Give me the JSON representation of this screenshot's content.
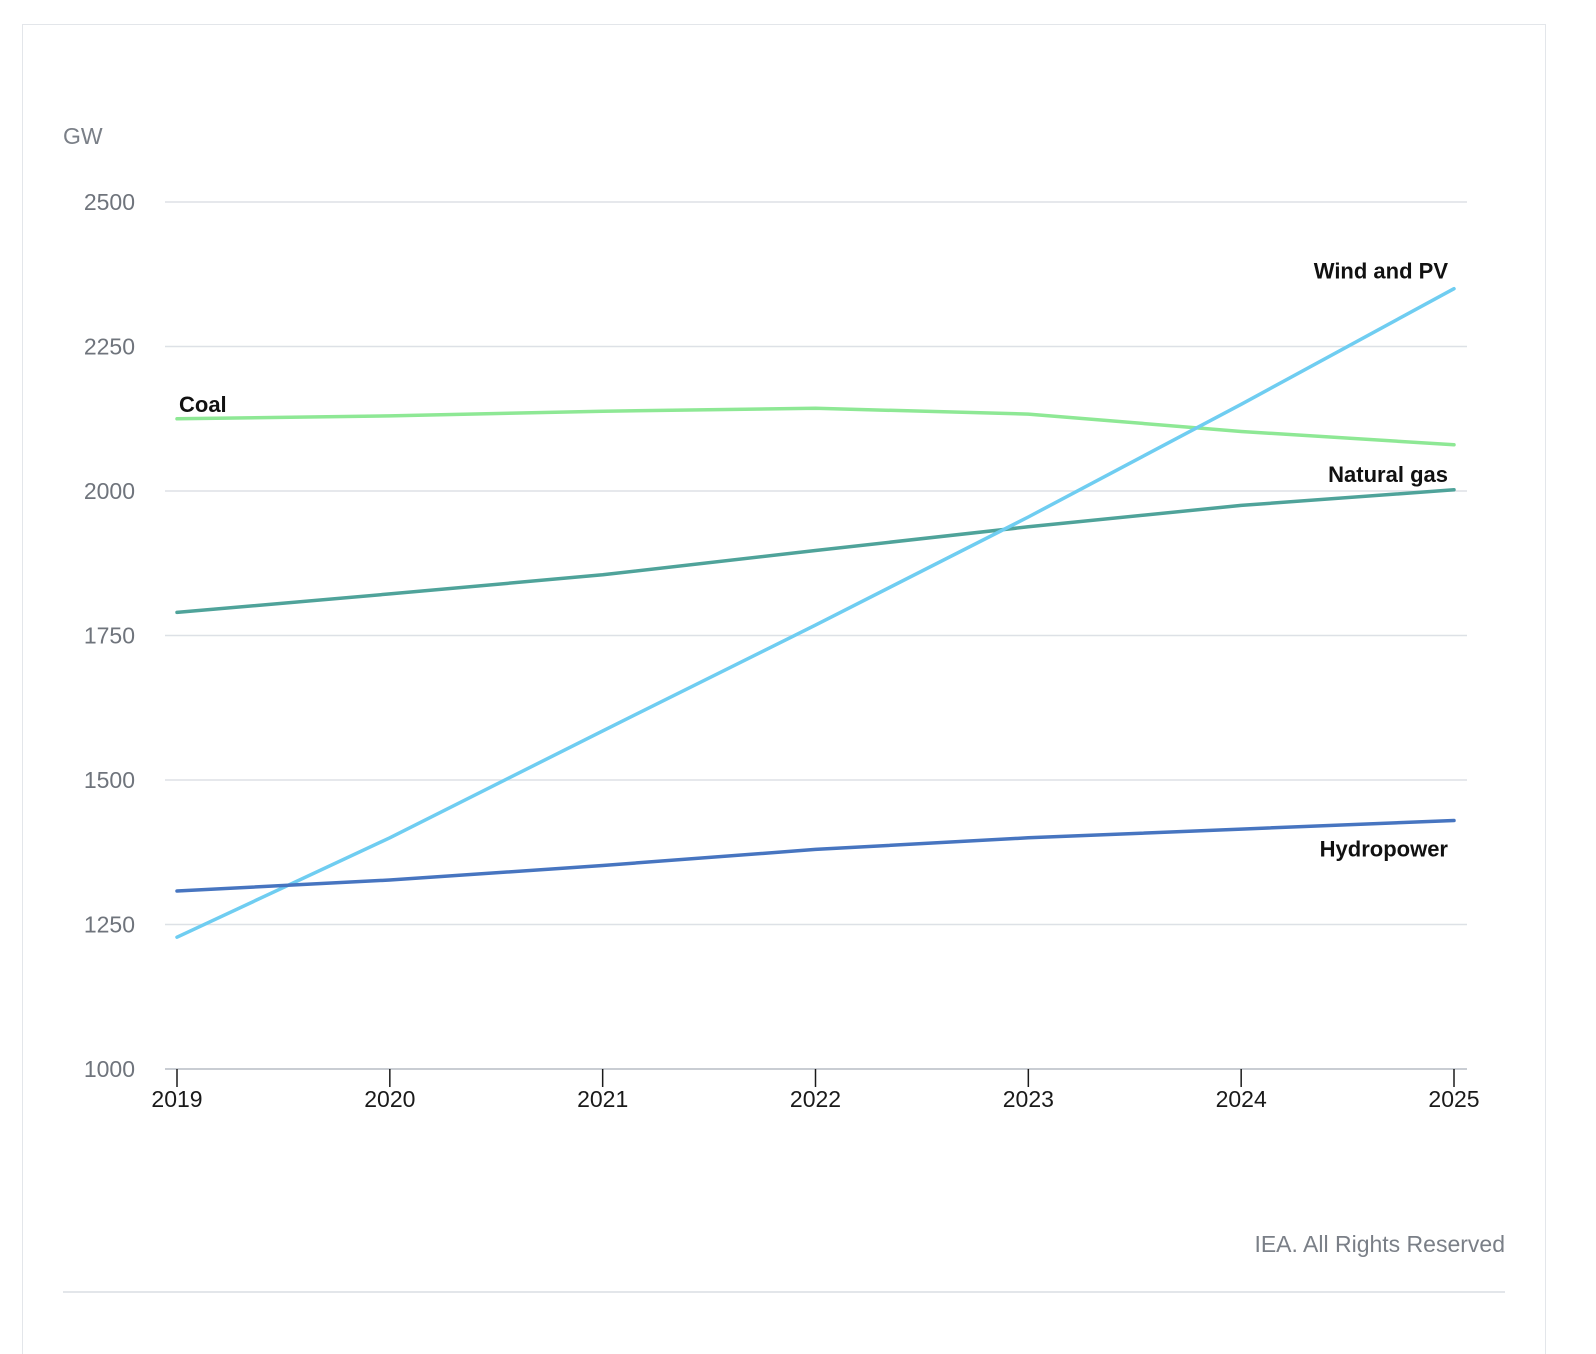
{
  "chart_data": {
    "type": "line",
    "y_unit": "GW",
    "x": [
      "2019",
      "2020",
      "2021",
      "2022",
      "2023",
      "2024",
      "2025"
    ],
    "ylim": [
      1000,
      2500
    ],
    "yticks": [
      "1000",
      "1250",
      "1500",
      "1750",
      "2000",
      "2250",
      "2500"
    ],
    "grid": true,
    "series": [
      {
        "name": "Coal",
        "color": "#8ee895",
        "values": [
          2125,
          2130,
          2138,
          2143,
          2133,
          2103,
          2080
        ]
      },
      {
        "name": "Natural gas",
        "color": "#4fa39a",
        "values": [
          1790,
          1822,
          1855,
          1897,
          1938,
          1975,
          2002
        ]
      },
      {
        "name": "Wind and PV",
        "color": "#6fcdf1",
        "values": [
          1228,
          1400,
          1585,
          1768,
          1955,
          2150,
          2350
        ]
      },
      {
        "name": "Hydropower",
        "color": "#4775c0",
        "values": [
          1308,
          1327,
          1352,
          1380,
          1400,
          1415,
          1430
        ]
      }
    ]
  },
  "credit": "IEA. All Rights Reserved"
}
